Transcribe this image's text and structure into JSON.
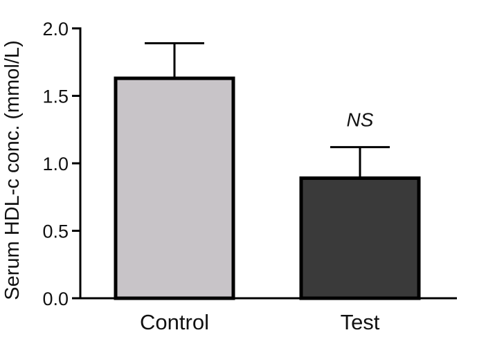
{
  "chart_data": {
    "type": "bar",
    "title": "",
    "xlabel": "",
    "ylabel": "Serum HDL-c conc. (mmol/L)",
    "categories": [
      "Control",
      "Test"
    ],
    "values": [
      1.63,
      0.89
    ],
    "error_upper": [
      1.89,
      1.12
    ],
    "bar_colors": [
      "#c8c4c8",
      "#3a3a3a"
    ],
    "annotations": [
      {
        "category": "Test",
        "text": "NS"
      }
    ],
    "ylim": [
      0,
      2.0
    ],
    "yticks": [
      0.0,
      0.5,
      1.0,
      1.5,
      2.0
    ],
    "ytick_labels": [
      "0.0",
      "0.5",
      "1.0",
      "1.5",
      "2.0"
    ],
    "grid": false,
    "legend": "none"
  }
}
